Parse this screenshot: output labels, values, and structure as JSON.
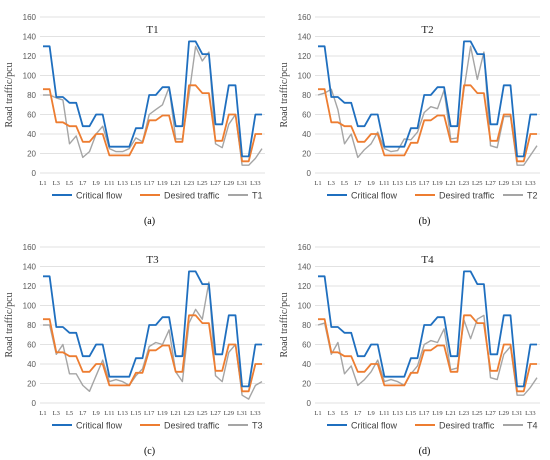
{
  "chart_data": [
    {
      "type": "line",
      "panel_label": "(a)",
      "title": "T1",
      "ylabel": "Road traffic/pcu",
      "ylim": [
        0,
        160
      ],
      "yticks": [
        0,
        20,
        40,
        60,
        80,
        100,
        120,
        140,
        160
      ],
      "categories": [
        "L1",
        "L2",
        "L3",
        "L4",
        "L5",
        "L6",
        "L7",
        "L8",
        "L9",
        "L10",
        "L11",
        "L12",
        "L13",
        "L14",
        "L15",
        "L16",
        "L17",
        "L18",
        "L19",
        "L20",
        "L21",
        "L22",
        "L23",
        "L24",
        "L25",
        "L26",
        "L27",
        "L28",
        "L29",
        "L30",
        "L31",
        "L32",
        "L33",
        "L34"
      ],
      "category_labels_shown": [
        "L1",
        "L3",
        "L5",
        "L7",
        "L9",
        "L11",
        "L13",
        "L15",
        "L17",
        "L19",
        "L21",
        "L23",
        "L25",
        "L27",
        "L29",
        "L31",
        "L33"
      ],
      "series": [
        {
          "name": "Critical flow",
          "color": "#1f6fbf",
          "values": [
            130,
            130,
            78,
            78,
            72,
            72,
            48,
            48,
            60,
            60,
            27,
            27,
            27,
            27,
            46,
            46,
            80,
            80,
            88,
            88,
            48,
            48,
            135,
            135,
            122,
            122,
            50,
            50,
            90,
            90,
            17,
            17,
            60,
            60
          ]
        },
        {
          "name": "Desired traffic",
          "color": "#ed7d31",
          "values": [
            86,
            86,
            52,
            52,
            48,
            48,
            32,
            32,
            40,
            40,
            18,
            18,
            18,
            18,
            31,
            31,
            54,
            54,
            59,
            59,
            32,
            32,
            90,
            90,
            82,
            82,
            33,
            33,
            60,
            60,
            12,
            12,
            40,
            40
          ]
        },
        {
          "name": "T1",
          "color": "#a5a5a5",
          "values": [
            80,
            80,
            77,
            75,
            30,
            38,
            16,
            22,
            40,
            48,
            25,
            22,
            22,
            25,
            36,
            32,
            60,
            65,
            70,
            88,
            35,
            35,
            80,
            130,
            115,
            124,
            30,
            26,
            50,
            60,
            8,
            8,
            15,
            25
          ]
        }
      ]
    },
    {
      "type": "line",
      "panel_label": "(b)",
      "title": "T2",
      "ylabel": "Road traffic/pcu",
      "ylim": [
        0,
        160
      ],
      "yticks": [
        0,
        20,
        40,
        60,
        80,
        100,
        120,
        140,
        160
      ],
      "categories": [
        "L1",
        "L2",
        "L3",
        "L4",
        "L5",
        "L6",
        "L7",
        "L8",
        "L9",
        "L10",
        "L11",
        "L12",
        "L13",
        "L14",
        "L15",
        "L16",
        "L17",
        "L18",
        "L19",
        "L20",
        "L21",
        "L22",
        "L23",
        "L24",
        "L25",
        "L26",
        "L27",
        "L28",
        "L29",
        "L30",
        "L31",
        "L32",
        "L33",
        "L34"
      ],
      "category_labels_shown": [
        "L1",
        "L3",
        "L5",
        "L7",
        "L9",
        "L11",
        "L13",
        "L15",
        "L17",
        "L19",
        "L21",
        "L23",
        "L25",
        "L27",
        "L29",
        "L31",
        "L33"
      ],
      "series": [
        {
          "name": "Critical flow",
          "color": "#1f6fbf",
          "values": [
            130,
            130,
            78,
            78,
            72,
            72,
            48,
            48,
            60,
            60,
            27,
            27,
            27,
            27,
            46,
            46,
            80,
            80,
            88,
            88,
            48,
            48,
            135,
            135,
            122,
            122,
            50,
            50,
            90,
            90,
            17,
            17,
            60,
            60
          ]
        },
        {
          "name": "Desired traffic",
          "color": "#ed7d31",
          "values": [
            86,
            86,
            52,
            52,
            48,
            48,
            32,
            32,
            40,
            40,
            18,
            18,
            18,
            18,
            31,
            31,
            54,
            54,
            59,
            59,
            32,
            32,
            90,
            90,
            82,
            82,
            33,
            33,
            60,
            60,
            12,
            12,
            40,
            40
          ]
        },
        {
          "name": "T2",
          "color": "#a5a5a5",
          "values": [
            80,
            82,
            86,
            65,
            30,
            40,
            16,
            24,
            30,
            42,
            25,
            22,
            23,
            35,
            34,
            42,
            62,
            68,
            66,
            85,
            35,
            36,
            86,
            130,
            96,
            124,
            28,
            26,
            58,
            58,
            8,
            8,
            18,
            28
          ]
        }
      ]
    },
    {
      "type": "line",
      "panel_label": "(c)",
      "title": "T3",
      "ylabel": "Road traffic/pcu",
      "ylim": [
        0,
        160
      ],
      "yticks": [
        0,
        20,
        40,
        60,
        80,
        100,
        120,
        140,
        160
      ],
      "categories": [
        "L1",
        "L2",
        "L3",
        "L4",
        "L5",
        "L6",
        "L7",
        "L8",
        "L9",
        "L10",
        "L11",
        "L12",
        "L13",
        "L14",
        "L15",
        "L16",
        "L17",
        "L18",
        "L19",
        "L20",
        "L21",
        "L22",
        "L23",
        "L24",
        "L25",
        "L26",
        "L27",
        "L28",
        "L29",
        "L30",
        "L31",
        "L32",
        "L33",
        "L34"
      ],
      "category_labels_shown": [
        "L1",
        "L3",
        "L5",
        "L7",
        "L9",
        "L11",
        "L13",
        "L15",
        "L17",
        "L19",
        "L21",
        "L23",
        "L25",
        "L27",
        "L29",
        "L31",
        "L33"
      ],
      "series": [
        {
          "name": "Critical flow",
          "color": "#1f6fbf",
          "values": [
            130,
            130,
            78,
            78,
            72,
            72,
            48,
            48,
            60,
            60,
            27,
            27,
            27,
            27,
            46,
            46,
            80,
            80,
            88,
            88,
            48,
            48,
            135,
            135,
            122,
            122,
            50,
            50,
            90,
            90,
            17,
            17,
            60,
            60
          ]
        },
        {
          "name": "Desired traffic",
          "color": "#ed7d31",
          "values": [
            86,
            86,
            52,
            52,
            48,
            48,
            32,
            32,
            40,
            40,
            18,
            18,
            18,
            18,
            31,
            31,
            54,
            54,
            59,
            59,
            32,
            32,
            90,
            90,
            82,
            82,
            33,
            33,
            60,
            60,
            12,
            12,
            40,
            40
          ]
        },
        {
          "name": "T3",
          "color": "#a5a5a5",
          "values": [
            80,
            80,
            50,
            60,
            30,
            30,
            18,
            12,
            28,
            44,
            22,
            24,
            22,
            18,
            28,
            35,
            58,
            62,
            60,
            75,
            32,
            22,
            82,
            96,
            86,
            124,
            28,
            22,
            52,
            60,
            8,
            4,
            18,
            22
          ]
        }
      ]
    },
    {
      "type": "line",
      "panel_label": "(d)",
      "title": "T4",
      "ylabel": "Road traffic/pcu",
      "ylim": [
        0,
        160
      ],
      "yticks": [
        0,
        20,
        40,
        60,
        80,
        100,
        120,
        140,
        160
      ],
      "categories": [
        "L1",
        "L2",
        "L3",
        "L4",
        "L5",
        "L6",
        "L7",
        "L8",
        "L9",
        "L10",
        "L11",
        "L12",
        "L13",
        "L14",
        "L15",
        "L16",
        "L17",
        "L18",
        "L19",
        "L20",
        "L21",
        "L22",
        "L23",
        "L24",
        "L25",
        "L26",
        "L27",
        "L28",
        "L29",
        "L30",
        "L31",
        "L32",
        "L33",
        "L34"
      ],
      "category_labels_shown": [
        "L1",
        "L3",
        "L5",
        "L7",
        "L9",
        "L11",
        "L13",
        "L15",
        "L17",
        "L19",
        "L21",
        "L23",
        "L25",
        "L27",
        "L29",
        "L31",
        "L33"
      ],
      "series": [
        {
          "name": "Critical flow",
          "color": "#1f6fbf",
          "values": [
            130,
            130,
            78,
            78,
            72,
            72,
            48,
            48,
            60,
            60,
            27,
            27,
            27,
            27,
            46,
            46,
            80,
            80,
            88,
            88,
            48,
            48,
            135,
            135,
            122,
            122,
            50,
            50,
            90,
            90,
            17,
            17,
            60,
            60
          ]
        },
        {
          "name": "Desired traffic",
          "color": "#ed7d31",
          "values": [
            86,
            86,
            52,
            52,
            48,
            48,
            32,
            32,
            40,
            40,
            18,
            18,
            18,
            18,
            31,
            31,
            54,
            54,
            59,
            59,
            32,
            32,
            90,
            90,
            82,
            82,
            33,
            33,
            60,
            60,
            12,
            12,
            40,
            40
          ]
        },
        {
          "name": "T4",
          "color": "#a5a5a5",
          "values": [
            80,
            82,
            50,
            62,
            30,
            38,
            18,
            24,
            32,
            44,
            22,
            24,
            22,
            18,
            30,
            38,
            60,
            64,
            62,
            76,
            34,
            36,
            85,
            66,
            86,
            90,
            26,
            24,
            50,
            58,
            8,
            8,
            16,
            26
          ]
        }
      ]
    }
  ]
}
